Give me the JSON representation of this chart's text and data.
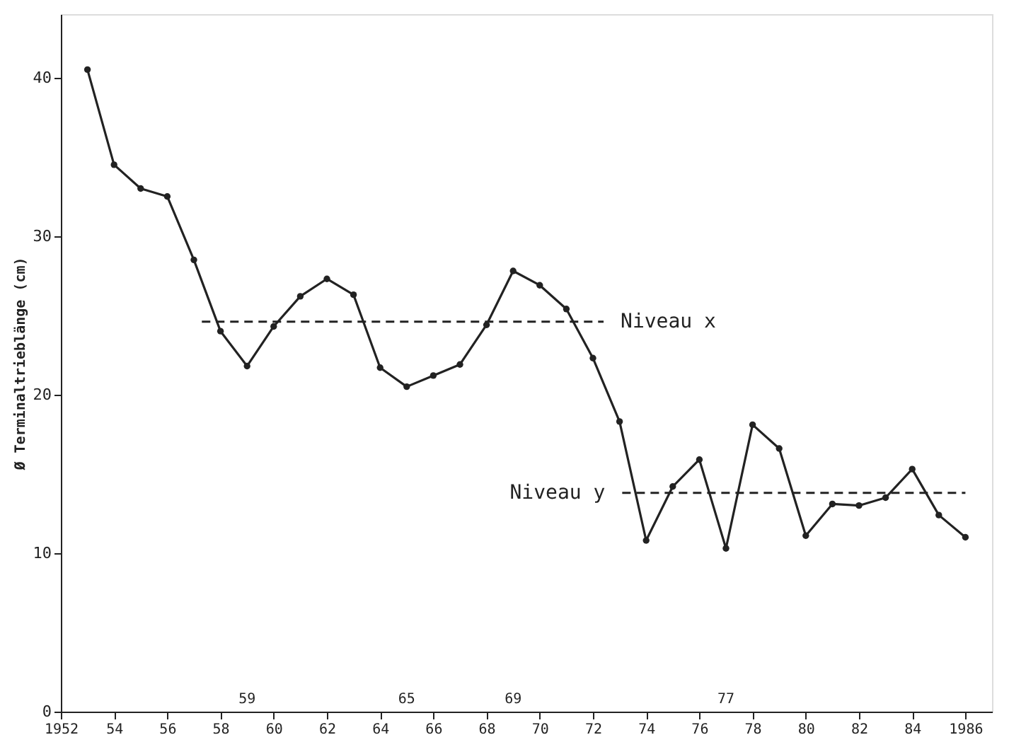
{
  "chart_data": {
    "type": "line",
    "ylabel": "Ø Terminaltrieblänge (cm)",
    "x": [
      1953,
      1954,
      1955,
      1956,
      1957,
      1958,
      1959,
      1960,
      1961,
      1962,
      1963,
      1964,
      1965,
      1966,
      1967,
      1968,
      1969,
      1970,
      1971,
      1972,
      1973,
      1974,
      1975,
      1976,
      1977,
      1978,
      1979,
      1980,
      1981,
      1982,
      1983,
      1984,
      1985,
      1986
    ],
    "series": [
      {
        "color": "#222222",
        "marker": "circle",
        "line_style": "solid",
        "values": [
          40.5,
          34.5,
          33,
          32.5,
          28.5,
          24,
          21.8,
          24.3,
          26.2,
          27.3,
          26.3,
          21.7,
          20.5,
          21.2,
          21.9,
          24.4,
          27.8,
          26.9,
          25.4,
          22.3,
          18.3,
          10.8,
          14.2,
          15.9,
          10.3,
          18.1,
          16.6,
          11.1,
          13.1,
          13.0,
          13.5,
          15.3,
          12.4,
          11.0
        ]
      },
      {
        "name": "Niveau x",
        "color": "#222222",
        "marker": "none",
        "line_style": "dashed",
        "x": [
          1957.3,
          1972.4
        ],
        "values": [
          24.6,
          24.6
        ]
      },
      {
        "name": "Niveau y",
        "color": "#222222",
        "marker": "none",
        "line_style": "dashed",
        "x": [
          1973.1,
          1986
        ],
        "values": [
          13.8,
          13.8
        ]
      }
    ],
    "xlim": [
      1952,
      1987
    ],
    "ylim": [
      0,
      44
    ],
    "xticks": [
      1952,
      {
        "value": 1954,
        "label": "54"
      },
      {
        "value": 1956,
        "label": "56"
      },
      {
        "value": 1958,
        "label": "58"
      },
      {
        "value": 1960,
        "label": "60"
      },
      {
        "value": 1962,
        "label": "62"
      },
      {
        "value": 1964,
        "label": "64"
      },
      {
        "value": 1966,
        "label": "66"
      },
      {
        "value": 1968,
        "label": "68"
      },
      {
        "value": 1970,
        "label": "70"
      },
      {
        "value": 1972,
        "label": "72"
      },
      {
        "value": 1974,
        "label": "74"
      },
      {
        "value": 1976,
        "label": "76"
      },
      {
        "value": 1978,
        "label": "78"
      },
      {
        "value": 1980,
        "label": "80"
      },
      {
        "value": 1982,
        "label": "82"
      },
      {
        "value": 1984,
        "label": "84"
      },
      1986
    ],
    "yticks": [
      0,
      10,
      20,
      30,
      40
    ],
    "annotations": [
      "59",
      "65",
      "69",
      "77"
    ],
    "grid": false
  }
}
